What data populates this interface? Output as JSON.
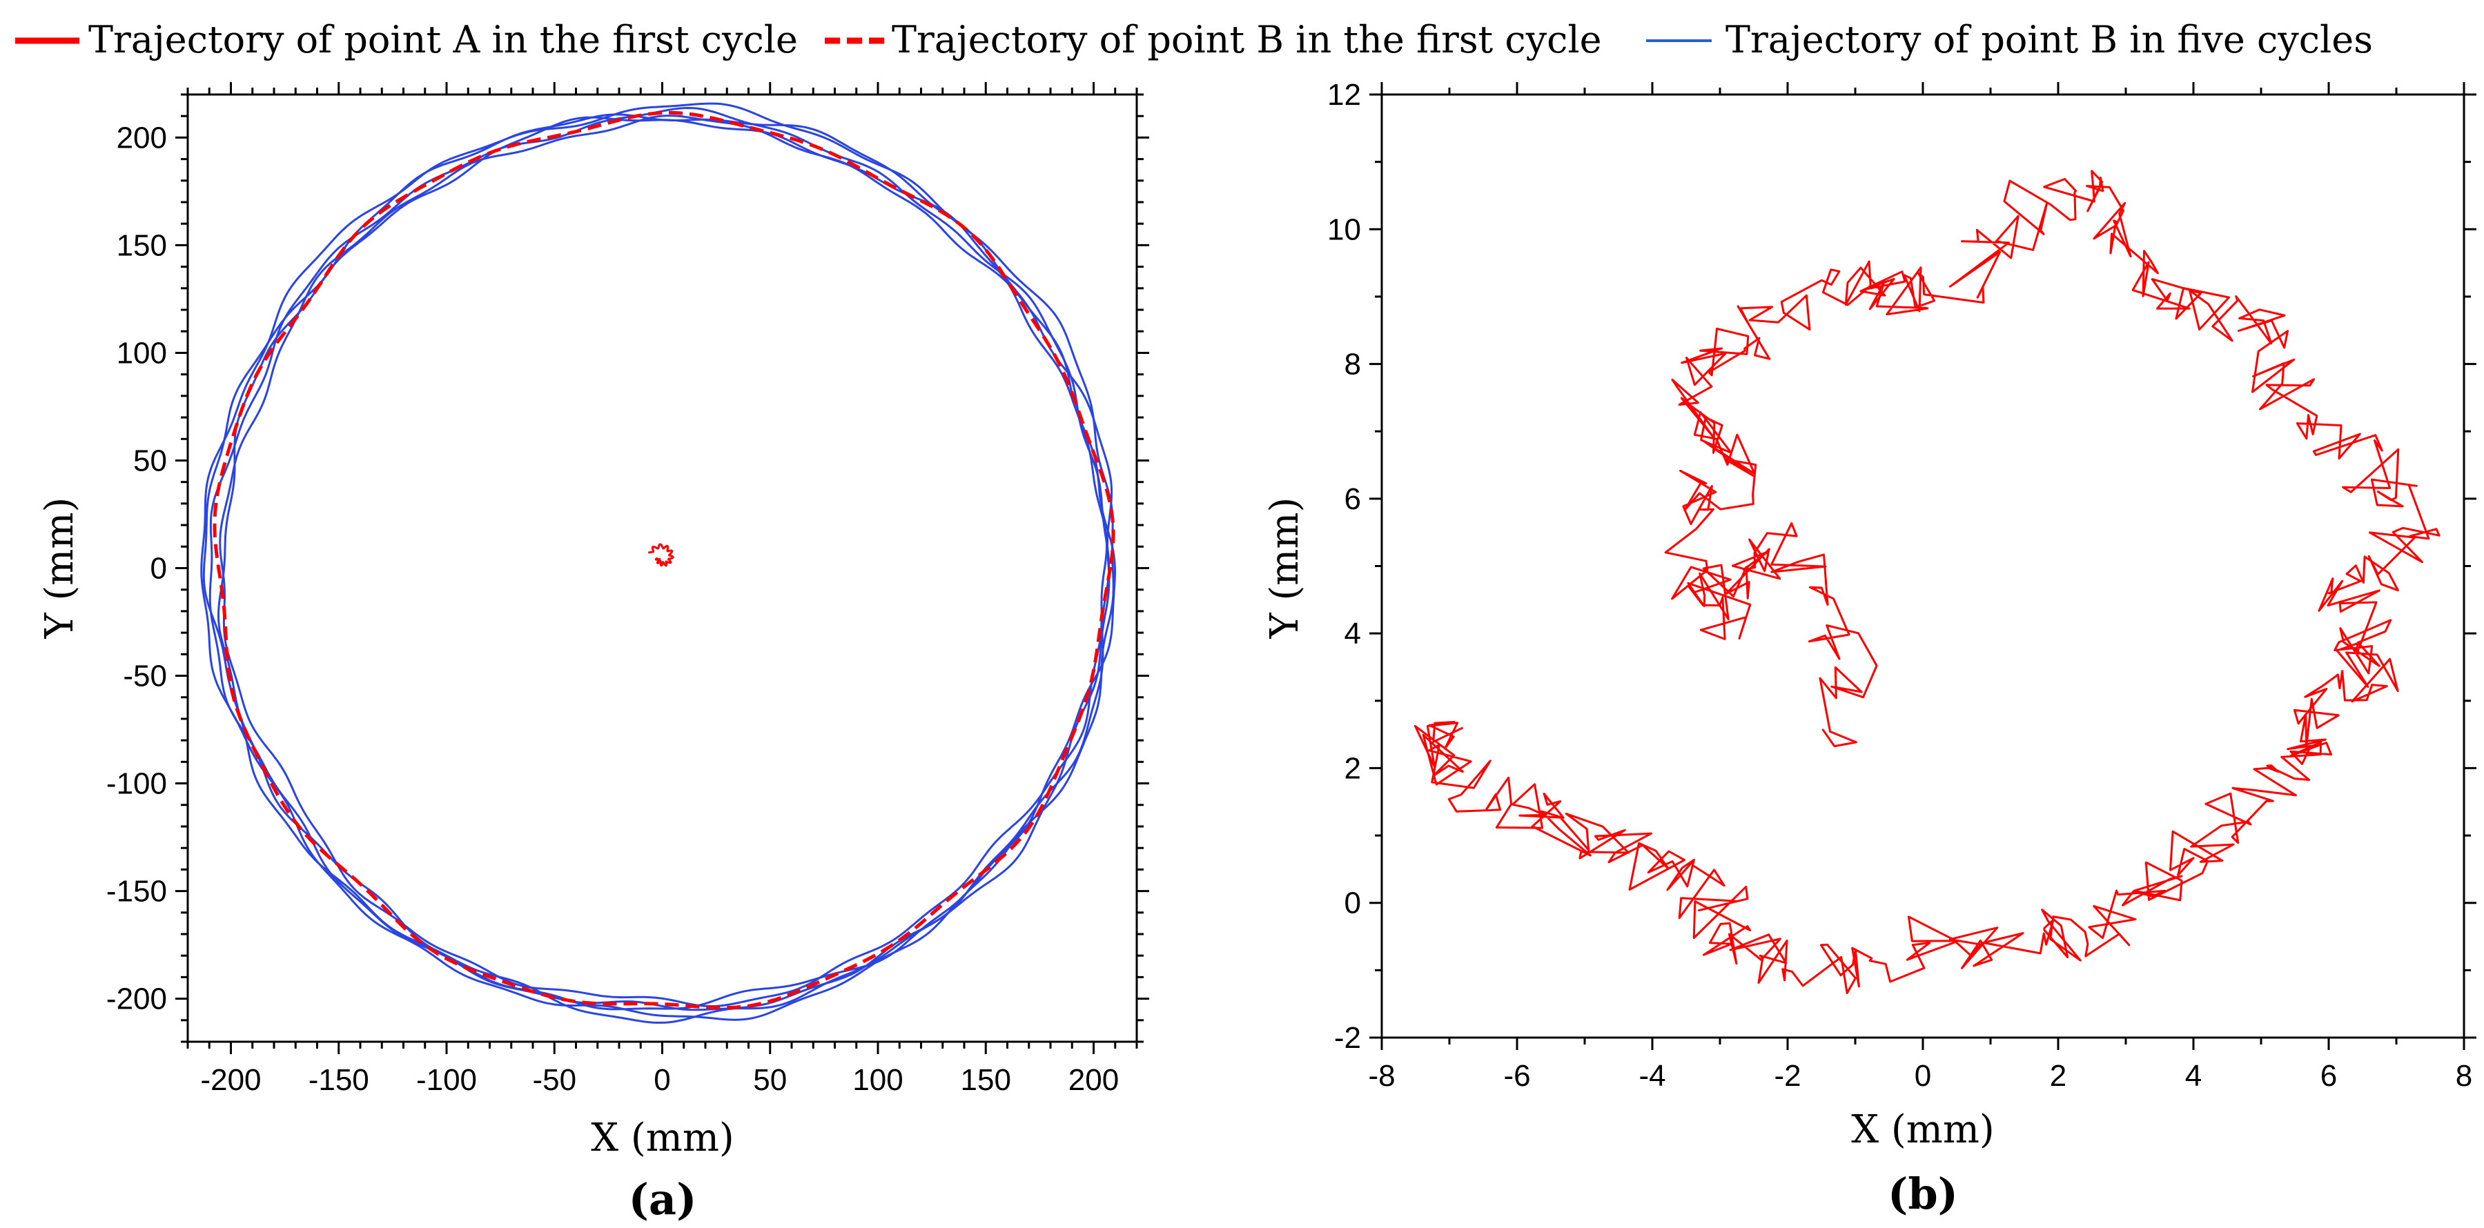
{
  "legend": {
    "a_label": "Trajectory of point A in the first cycle",
    "b_first_label": "Trajectory of point B in the first cycle",
    "b_five_label": "Trajectory of point B in five cycles",
    "colors": {
      "a": "#ff0000",
      "b_first": "#ff0000",
      "b_five": "#2a5ce0"
    }
  },
  "chart_data": [
    {
      "id": "a",
      "panel_label": "(a)",
      "type": "line",
      "xlabel": "X (mm)",
      "ylabel": "Y (mm)",
      "xlim": [
        -220,
        220
      ],
      "ylim": [
        -220,
        220
      ],
      "x_ticks": [
        -200,
        -150,
        -100,
        -50,
        0,
        50,
        100,
        150,
        200
      ],
      "y_ticks": [
        -200,
        -150,
        -100,
        -50,
        0,
        50,
        100,
        150,
        200
      ],
      "series": [
        {
          "name": "Trajectory of point B in five cycles",
          "style": "solid-blue",
          "description": "five near-circular loops, center ~(0,2), radius ~206-210 mm",
          "center": [
            0,
            2
          ],
          "radius": 208,
          "cycles": 5
        },
        {
          "name": "Trajectory of point B in the first cycle",
          "style": "dashed-red",
          "center": [
            0,
            2
          ],
          "radius": 207,
          "cycles": 1
        },
        {
          "name": "Trajectory of point A in the first cycle",
          "style": "solid-red",
          "description": "tiny loop near origin (same shape as panel b)",
          "center": [
            0,
            5
          ],
          "radius": 6,
          "cycles": 1
        }
      ]
    },
    {
      "id": "b",
      "panel_label": "(b)",
      "type": "line",
      "xlabel": "X (mm)",
      "ylabel": "Y (mm)",
      "xlim": [
        -8,
        8
      ],
      "ylim": [
        -2,
        12
      ],
      "x_ticks": [
        -8,
        -6,
        -4,
        -2,
        0,
        2,
        4,
        6,
        8
      ],
      "y_ticks": [
        -2,
        0,
        2,
        4,
        6,
        8,
        10,
        12
      ],
      "series": [
        {
          "name": "Trajectory of point A in the first cycle",
          "style": "solid-red",
          "description": "noisy spiral path",
          "anchors": [
            [
              -1.2,
              2.6
            ],
            [
              -1.0,
              3.4
            ],
            [
              -1.6,
              4.6
            ],
            [
              -2.0,
              5.4
            ],
            [
              -2.6,
              5.0
            ],
            [
              -3.2,
              4.6
            ],
            [
              -2.8,
              4.1
            ],
            [
              -3.4,
              5.0
            ],
            [
              -3.6,
              6.1
            ],
            [
              -2.8,
              6.1
            ],
            [
              -3.0,
              7.0
            ],
            [
              -3.5,
              7.1
            ],
            [
              -3.2,
              7.9
            ],
            [
              -2.8,
              8.3
            ],
            [
              -2.2,
              8.6
            ],
            [
              -1.4,
              9.2
            ],
            [
              -0.8,
              9.3
            ],
            [
              -0.3,
              9.1
            ],
            [
              0.4,
              9.0
            ],
            [
              1.0,
              9.6
            ],
            [
              1.6,
              10.3
            ],
            [
              2.2,
              10.6
            ],
            [
              2.8,
              10.2
            ],
            [
              3.2,
              9.6
            ],
            [
              3.6,
              9.0
            ],
            [
              4.4,
              8.7
            ],
            [
              5.0,
              8.5
            ],
            [
              5.2,
              7.7
            ],
            [
              5.6,
              7.0
            ],
            [
              6.3,
              6.6
            ],
            [
              7.0,
              6.2
            ],
            [
              7.2,
              5.6
            ],
            [
              6.8,
              5.0
            ],
            [
              6.2,
              4.6
            ],
            [
              6.6,
              4.0
            ],
            [
              6.4,
              3.6
            ],
            [
              6.8,
              3.2
            ],
            [
              6.0,
              3.0
            ],
            [
              5.6,
              2.6
            ],
            [
              5.8,
              2.0
            ],
            [
              5.2,
              1.6
            ],
            [
              4.6,
              1.2
            ],
            [
              4.0,
              0.8
            ],
            [
              3.6,
              0.2
            ],
            [
              3.0,
              -0.2
            ],
            [
              2.4,
              -0.6
            ],
            [
              1.8,
              -0.4
            ],
            [
              1.0,
              -0.8
            ],
            [
              0.2,
              -0.6
            ],
            [
              -0.6,
              -0.9
            ],
            [
              -1.4,
              -1.0
            ],
            [
              -2.2,
              -0.9
            ],
            [
              -2.8,
              -0.6
            ],
            [
              -3.0,
              -0.1
            ],
            [
              -3.4,
              0.3
            ],
            [
              -4.0,
              0.6
            ],
            [
              -4.6,
              0.9
            ],
            [
              -5.2,
              1.0
            ],
            [
              -5.8,
              1.4
            ],
            [
              -6.4,
              1.6
            ],
            [
              -7.0,
              2.0
            ],
            [
              -7.2,
              2.4
            ],
            [
              -6.8,
              2.6
            ]
          ]
        }
      ]
    }
  ]
}
